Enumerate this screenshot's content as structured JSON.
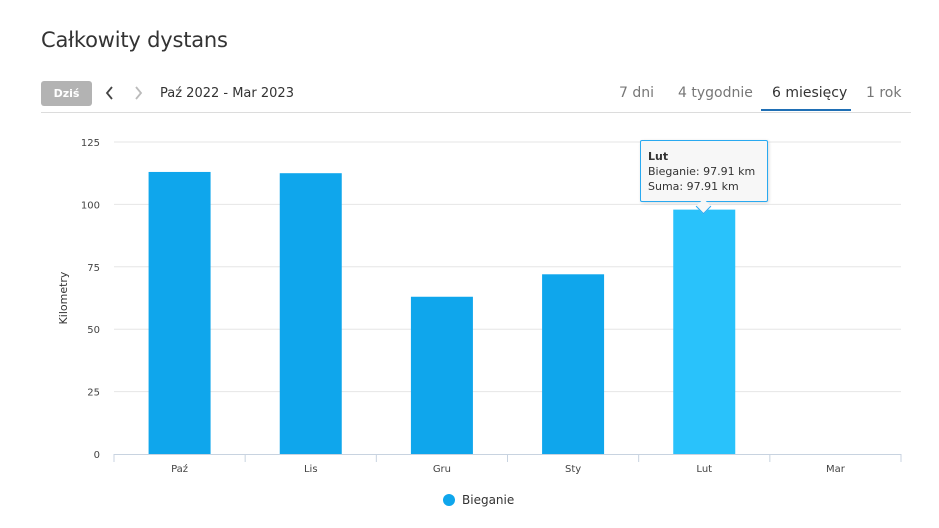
{
  "page_title": "Całkowity dystans",
  "toolbar": {
    "today_label": "Dziś",
    "prev_icon": "chevron-left-icon",
    "next_icon": "chevron-right-icon",
    "range_label": "Paź 2022 - Mar 2023",
    "tabs": [
      {
        "label": "7 dni",
        "active": false
      },
      {
        "label": "4 tygodnie",
        "active": false
      },
      {
        "label": "6 miesięcy",
        "active": true
      },
      {
        "label": "1 rok",
        "active": false
      }
    ]
  },
  "tooltip": {
    "title": "Lut",
    "line1": "Bieganie: 97.91 km",
    "line2": "Suma: 97.91 km"
  },
  "chart_data": {
    "type": "bar",
    "categories": [
      "Paź",
      "Lis",
      "Gru",
      "Sty",
      "Lut",
      "Mar"
    ],
    "series": [
      {
        "name": "Bieganie",
        "values": [
          113,
          112.5,
          63,
          72,
          97.91,
          0
        ],
        "color": "#0fa6ec",
        "highlight_color": "#29c2fb"
      }
    ],
    "highlighted_category": "Lut",
    "ylabel": "Kilometry",
    "xlabel": "",
    "ylim": [
      0,
      125
    ],
    "yticks": [
      0,
      25,
      50,
      75,
      100,
      125
    ],
    "grid": true,
    "legend_position": "bottom"
  }
}
